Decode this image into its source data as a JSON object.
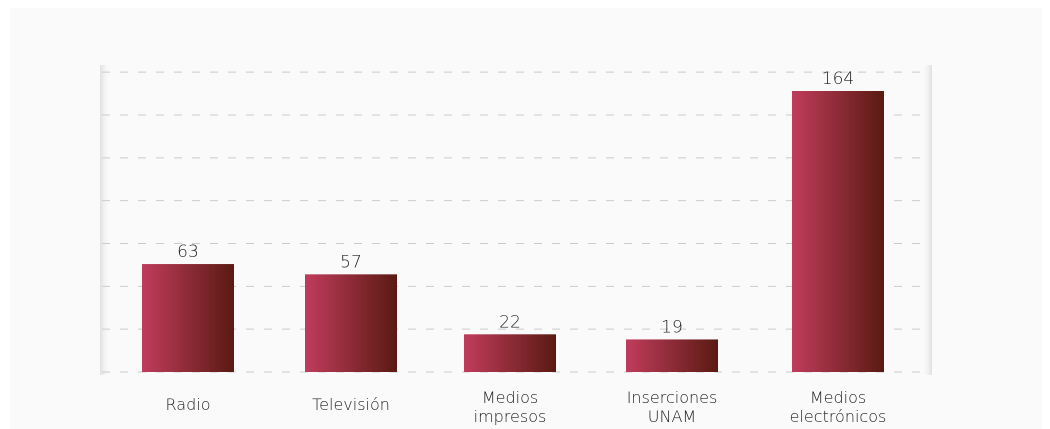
{
  "chart_data": {
    "type": "bar",
    "title": "",
    "xlabel": "",
    "ylabel": "",
    "categories": [
      [
        "Radio"
      ],
      [
        "Televisión"
      ],
      [
        "Medios",
        "impresos"
      ],
      [
        "Inserciones",
        "UNAM"
      ],
      [
        "Medios",
        "electrónicos"
      ]
    ],
    "values": [
      63,
      57,
      22,
      19,
      164
    ],
    "ylim": [
      0,
      175
    ],
    "grid": true,
    "legend": "none",
    "bar_color_start": "#c03c5c",
    "bar_color_end": "#5a1a12",
    "grid_color": "#cccccc"
  }
}
